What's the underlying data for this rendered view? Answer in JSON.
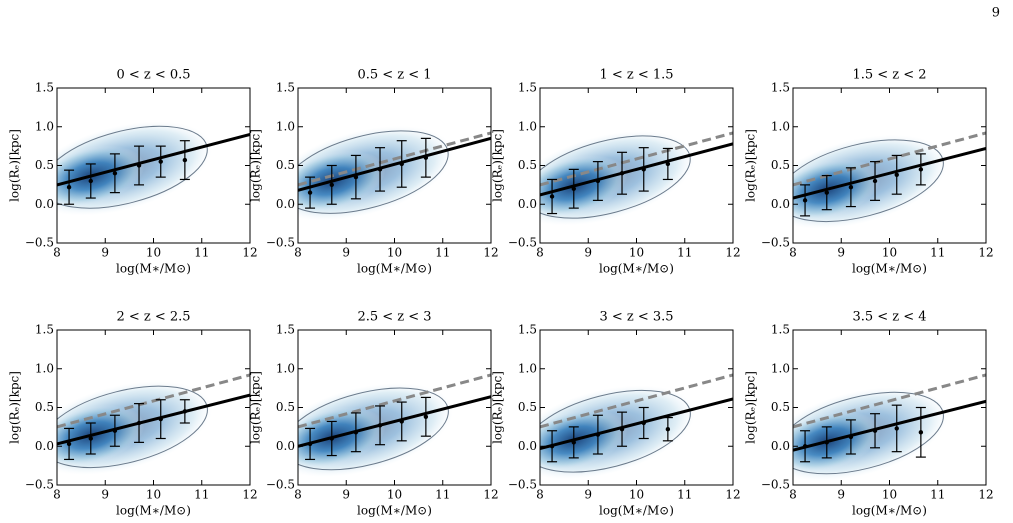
{
  "page_number": "9",
  "chart_data": [
    {
      "type": "errorbar",
      "title": "0 < z < 0.5",
      "xlabel": "log(M∗/M⊙)",
      "ylabel": "log(Rₑ)[kpc]",
      "xlim": [
        8,
        12
      ],
      "ylim": [
        -0.5,
        1.5
      ],
      "xticks": [
        8,
        9,
        10,
        11,
        12
      ],
      "yticks": [
        {
          "value": -0.5,
          "label": "−0.5"
        },
        {
          "value": 0,
          "label": "0.0"
        },
        0.5,
        {
          "value": 1,
          "label": "1.0"
        },
        1.5
      ],
      "color": "#000000",
      "x": [
        8.25,
        8.7,
        9.2,
        9.7,
        10.15,
        10.65
      ],
      "values": [
        0.22,
        0.3,
        0.4,
        0.5,
        0.55,
        0.57
      ],
      "errors": [
        0.22,
        0.22,
        0.25,
        0.25,
        0.2,
        0.25
      ],
      "lines": [
        {
          "x": [
            8,
            12
          ],
          "values": [
            0.25,
            0.9
          ],
          "color": "#000000",
          "dashed": false
        }
      ]
    },
    {
      "type": "errorbar",
      "title": "0.5 < z < 1",
      "xlabel": "log(M∗/M⊙)",
      "ylabel": "log(Rₑ)[kpc]",
      "xlim": [
        8,
        12
      ],
      "ylim": [
        -0.5,
        1.5
      ],
      "xticks": [
        8,
        9,
        10,
        11,
        12
      ],
      "yticks": [
        {
          "value": -0.5,
          "label": "−0.5"
        },
        {
          "value": 0,
          "label": "0.0"
        },
        0.5,
        {
          "value": 1,
          "label": "1.0"
        },
        1.5
      ],
      "color": "#000000",
      "x": [
        8.25,
        8.7,
        9.2,
        9.7,
        10.15,
        10.65
      ],
      "values": [
        0.15,
        0.25,
        0.35,
        0.45,
        0.52,
        0.6
      ],
      "errors": [
        0.2,
        0.25,
        0.28,
        0.28,
        0.3,
        0.25
      ],
      "lines": [
        {
          "x": [
            8,
            12
          ],
          "values": [
            0.25,
            0.92
          ],
          "color": "#888888",
          "dashed": true
        },
        {
          "x": [
            8,
            12
          ],
          "values": [
            0.18,
            0.85
          ],
          "color": "#000000",
          "dashed": false
        }
      ]
    },
    {
      "type": "errorbar",
      "title": "1 < z < 1.5",
      "xlabel": "log(M∗/M⊙)",
      "ylabel": "log(Rₑ)[kpc]",
      "xlim": [
        8,
        12
      ],
      "ylim": [
        -0.5,
        1.5
      ],
      "xticks": [
        8,
        9,
        10,
        11,
        12
      ],
      "yticks": [
        {
          "value": -0.5,
          "label": "−0.5"
        },
        {
          "value": 0,
          "label": "0.0"
        },
        0.5,
        {
          "value": 1,
          "label": "1.0"
        },
        1.5
      ],
      "color": "#000000",
      "x": [
        8.25,
        8.7,
        9.2,
        9.7,
        10.15,
        10.65
      ],
      "values": [
        0.1,
        0.2,
        0.3,
        0.4,
        0.45,
        0.52
      ],
      "errors": [
        0.22,
        0.25,
        0.25,
        0.27,
        0.28,
        0.2
      ],
      "lines": [
        {
          "x": [
            8,
            12
          ],
          "values": [
            0.25,
            0.92
          ],
          "color": "#888888",
          "dashed": true
        },
        {
          "x": [
            8,
            12
          ],
          "values": [
            0.12,
            0.78
          ],
          "color": "#000000",
          "dashed": false
        }
      ]
    },
    {
      "type": "errorbar",
      "title": "1.5 < z < 2",
      "xlabel": "log(M∗/M⊙)",
      "ylabel": "log(Rₑ)[kpc]",
      "xlim": [
        8,
        12
      ],
      "ylim": [
        -0.5,
        1.5
      ],
      "xticks": [
        8,
        9,
        10,
        11,
        12
      ],
      "yticks": [
        {
          "value": -0.5,
          "label": "−0.5"
        },
        {
          "value": 0,
          "label": "0.0"
        },
        0.5,
        {
          "value": 1,
          "label": "1.0"
        },
        1.5
      ],
      "color": "#000000",
      "x": [
        8.25,
        8.7,
        9.2,
        9.7,
        10.15,
        10.65
      ],
      "values": [
        0.05,
        0.15,
        0.22,
        0.3,
        0.38,
        0.45
      ],
      "errors": [
        0.2,
        0.22,
        0.25,
        0.25,
        0.25,
        0.2
      ],
      "lines": [
        {
          "x": [
            8,
            12
          ],
          "values": [
            0.25,
            0.92
          ],
          "color": "#888888",
          "dashed": true
        },
        {
          "x": [
            8,
            12
          ],
          "values": [
            0.08,
            0.72
          ],
          "color": "#000000",
          "dashed": false
        }
      ]
    },
    {
      "type": "errorbar",
      "title": "2 < z < 2.5",
      "xlabel": "log(M∗/M⊙)",
      "ylabel": "log(Rₑ)[kpc]",
      "xlim": [
        8,
        12
      ],
      "ylim": [
        -0.5,
        1.5
      ],
      "xticks": [
        8,
        9,
        10,
        11,
        12
      ],
      "yticks": [
        {
          "value": -0.5,
          "label": "−0.5"
        },
        {
          "value": 0,
          "label": "0.0"
        },
        0.5,
        {
          "value": 1,
          "label": "1.0"
        },
        1.5
      ],
      "color": "#000000",
      "x": [
        8.25,
        8.7,
        9.2,
        9.7,
        10.15,
        10.65
      ],
      "values": [
        0.03,
        0.1,
        0.2,
        0.3,
        0.35,
        0.45
      ],
      "errors": [
        0.2,
        0.2,
        0.2,
        0.25,
        0.25,
        0.15
      ],
      "lines": [
        {
          "x": [
            8,
            12
          ],
          "values": [
            0.25,
            0.92
          ],
          "color": "#888888",
          "dashed": true
        },
        {
          "x": [
            8,
            12
          ],
          "values": [
            0.03,
            0.66
          ],
          "color": "#000000",
          "dashed": false
        }
      ]
    },
    {
      "type": "errorbar",
      "title": "2.5 < z < 3",
      "xlabel": "log(M∗/M⊙)",
      "ylabel": "log(Rₑ)[kpc]",
      "xlim": [
        8,
        12
      ],
      "ylim": [
        -0.5,
        1.5
      ],
      "xticks": [
        8,
        9,
        10,
        11,
        12
      ],
      "yticks": [
        {
          "value": -0.5,
          "label": "−0.5"
        },
        {
          "value": 0,
          "label": "0.0"
        },
        0.5,
        {
          "value": 1,
          "label": "1.0"
        },
        1.5
      ],
      "color": "#000000",
      "x": [
        8.25,
        8.7,
        9.2,
        9.7,
        10.15,
        10.65
      ],
      "values": [
        0.03,
        0.1,
        0.18,
        0.27,
        0.32,
        0.38
      ],
      "errors": [
        0.2,
        0.22,
        0.25,
        0.25,
        0.25,
        0.25
      ],
      "lines": [
        {
          "x": [
            8,
            12
          ],
          "values": [
            0.25,
            0.92
          ],
          "color": "#888888",
          "dashed": true
        },
        {
          "x": [
            8,
            12
          ],
          "values": [
            0,
            0.64
          ],
          "color": "#000000",
          "dashed": false
        }
      ]
    },
    {
      "type": "errorbar",
      "title": "3 < z < 3.5",
      "xlabel": "log(M∗/M⊙)",
      "ylabel": "log(Rₑ)[kpc]",
      "xlim": [
        8,
        12
      ],
      "ylim": [
        -0.5,
        1.5
      ],
      "xticks": [
        8,
        9,
        10,
        11,
        12
      ],
      "yticks": [
        {
          "value": -0.5,
          "label": "−0.5"
        },
        {
          "value": 0,
          "label": "0.0"
        },
        0.5,
        {
          "value": 1,
          "label": "1.0"
        },
        1.5
      ],
      "color": "#000000",
      "x": [
        8.25,
        8.7,
        9.2,
        9.7,
        10.15,
        10.65
      ],
      "values": [
        0,
        0.05,
        0.15,
        0.22,
        0.3,
        0.22
      ],
      "errors": [
        0.2,
        0.2,
        0.25,
        0.22,
        0.2,
        0.15
      ],
      "lines": [
        {
          "x": [
            8,
            12
          ],
          "values": [
            0.25,
            0.92
          ],
          "color": "#888888",
          "dashed": true
        },
        {
          "x": [
            8,
            12
          ],
          "values": [
            -0.03,
            0.61
          ],
          "color": "#000000",
          "dashed": false
        }
      ]
    },
    {
      "type": "errorbar",
      "title": "3.5 < z < 4",
      "xlabel": "log(M∗/M⊙)",
      "ylabel": "log(Rₑ)[kpc]",
      "xlim": [
        8,
        12
      ],
      "ylim": [
        -0.5,
        1.5
      ],
      "xticks": [
        8,
        9,
        10,
        11,
        12
      ],
      "yticks": [
        {
          "value": -0.5,
          "label": "−0.5"
        },
        {
          "value": 0,
          "label": "0.0"
        },
        0.5,
        {
          "value": 1,
          "label": "1.0"
        },
        1.5
      ],
      "color": "#000000",
      "x": [
        8.25,
        8.7,
        9.2,
        9.7,
        10.15,
        10.65
      ],
      "values": [
        0,
        0.05,
        0.12,
        0.2,
        0.23,
        0.18
      ],
      "errors": [
        0.2,
        0.2,
        0.22,
        0.22,
        0.3,
        0.32
      ],
      "lines": [
        {
          "x": [
            8,
            12
          ],
          "values": [
            0.25,
            0.92
          ],
          "color": "#888888",
          "dashed": true
        },
        {
          "x": [
            8,
            12
          ],
          "values": [
            -0.05,
            0.58
          ],
          "color": "#000000",
          "dashed": false
        }
      ]
    }
  ]
}
